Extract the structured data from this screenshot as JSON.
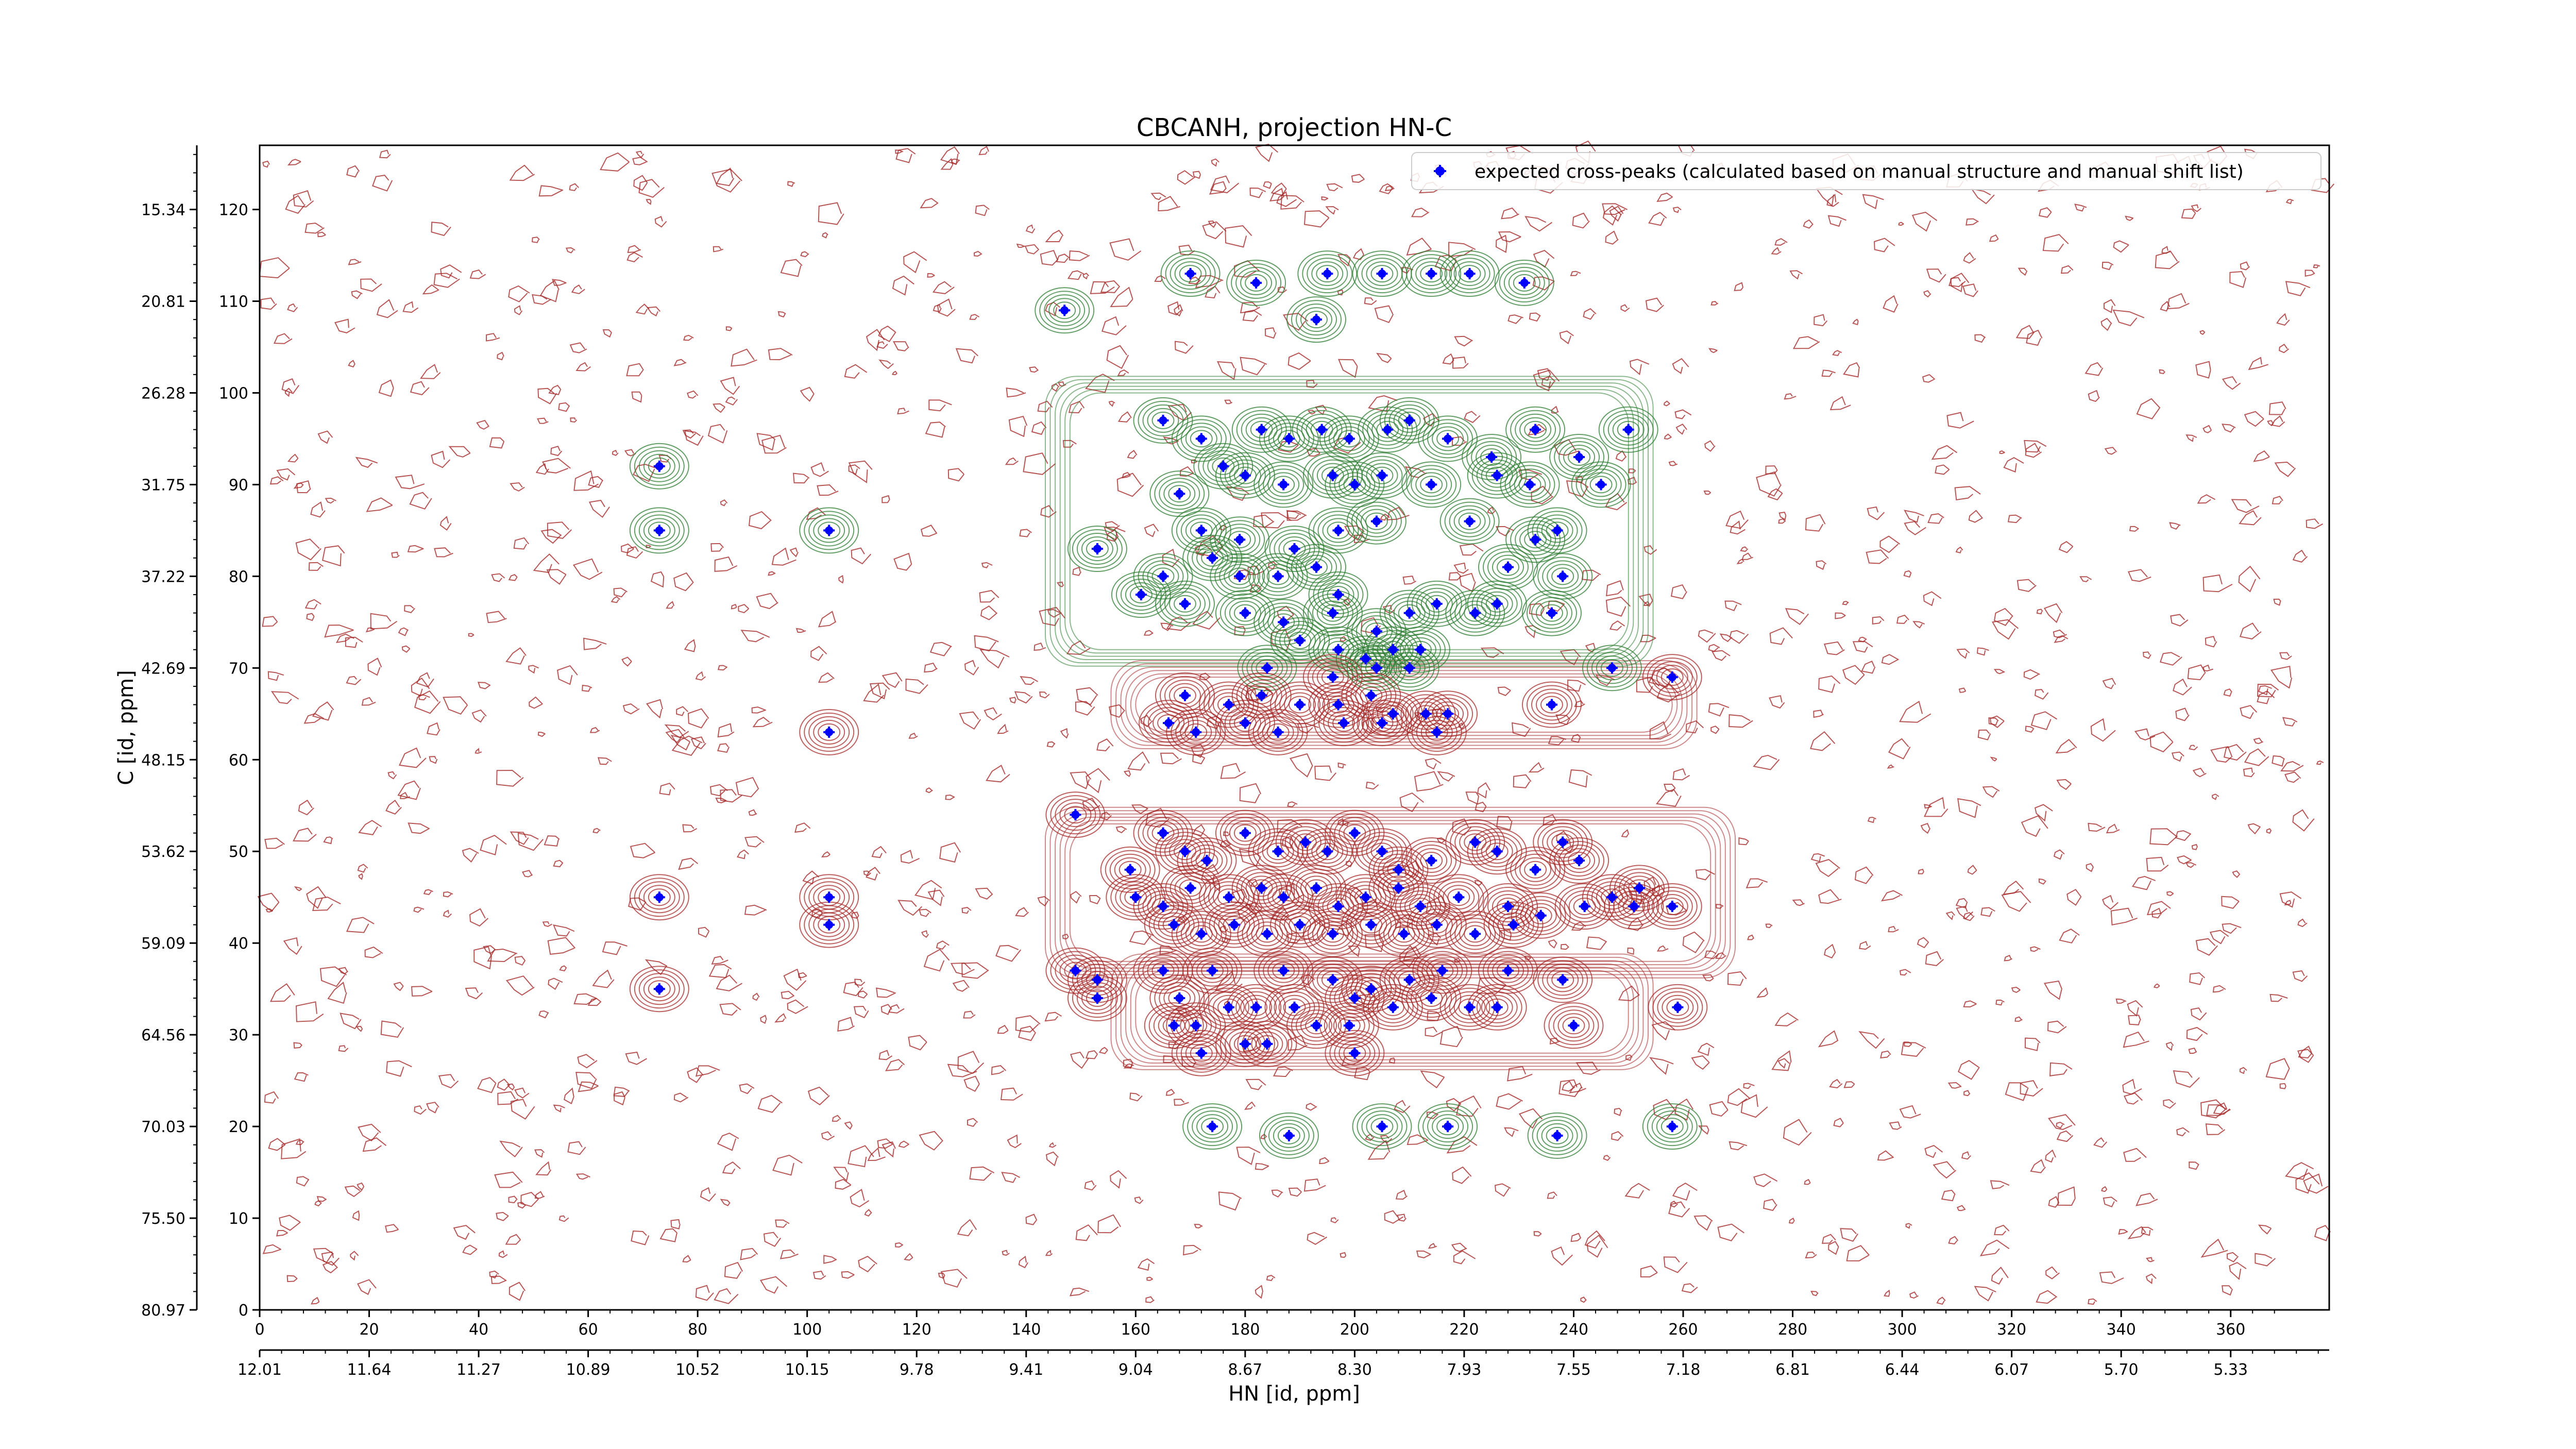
{
  "chart_data": {
    "type": "contour",
    "title": "CBCANH, projection HN-C",
    "xlabel": "HN [id, ppm]",
    "ylabel": "C [id, ppm]",
    "x_index_ticks": [
      "0",
      "20",
      "40",
      "60",
      "80",
      "100",
      "120",
      "140",
      "160",
      "180",
      "200",
      "220",
      "240",
      "260",
      "280",
      "300",
      "320",
      "340",
      "360"
    ],
    "x_ppm_ticks": [
      "12.01",
      "11.64",
      "11.27",
      "10.89",
      "10.52",
      "10.15",
      "9.78",
      "9.41",
      "9.04",
      "8.67",
      "8.30",
      "7.93",
      "7.55",
      "7.18",
      "6.81",
      "6.44",
      "6.07",
      "5.70",
      "5.33"
    ],
    "y_index_ticks": [
      "0",
      "10",
      "20",
      "30",
      "40",
      "50",
      "60",
      "70",
      "80",
      "90",
      "100",
      "110",
      "120"
    ],
    "y_ppm_ticks": [
      "80.97",
      "75.50",
      "70.03",
      "64.56",
      "59.09",
      "53.62",
      "48.15",
      "42.69",
      "37.22",
      "31.75",
      "26.28",
      "20.81",
      "15.34"
    ],
    "xlim": [
      0,
      378
    ],
    "ylim": [
      0,
      127
    ],
    "legend": {
      "label": "expected cross-peaks (calculated based on manual structure and manual shift list)",
      "placement": "top-right"
    },
    "colors": {
      "positive_contours": "#2e7d32",
      "negative_contours": "#a52a2a",
      "peaks": "#0000ff"
    },
    "expected_peaks": [
      [
        170,
        113
      ],
      [
        182,
        112
      ],
      [
        195,
        113
      ],
      [
        205,
        113
      ],
      [
        214,
        113
      ],
      [
        221,
        113
      ],
      [
        231,
        112
      ],
      [
        147,
        109
      ],
      [
        193,
        108
      ],
      [
        73,
        92
      ],
      [
        73,
        85
      ],
      [
        104,
        85
      ],
      [
        104,
        63
      ],
      [
        165,
        97
      ],
      [
        172,
        95
      ],
      [
        176,
        92
      ],
      [
        183,
        96
      ],
      [
        188,
        95
      ],
      [
        194,
        96
      ],
      [
        199,
        95
      ],
      [
        206,
        96
      ],
      [
        210,
        97
      ],
      [
        217,
        95
      ],
      [
        225,
        93
      ],
      [
        233,
        96
      ],
      [
        241,
        93
      ],
      [
        245,
        90
      ],
      [
        250,
        96
      ],
      [
        180,
        91
      ],
      [
        187,
        90
      ],
      [
        196,
        91
      ],
      [
        200,
        90
      ],
      [
        205,
        91
      ],
      [
        214,
        90
      ],
      [
        226,
        91
      ],
      [
        232,
        90
      ],
      [
        168,
        89
      ],
      [
        172,
        85
      ],
      [
        179,
        84
      ],
      [
        189,
        83
      ],
      [
        197,
        85
      ],
      [
        204,
        86
      ],
      [
        221,
        86
      ],
      [
        233,
        84
      ],
      [
        237,
        85
      ],
      [
        153,
        83
      ],
      [
        165,
        80
      ],
      [
        174,
        82
      ],
      [
        179,
        80
      ],
      [
        186,
        80
      ],
      [
        193,
        81
      ],
      [
        197,
        78
      ],
      [
        228,
        81
      ],
      [
        238,
        80
      ],
      [
        161,
        78
      ],
      [
        169,
        77
      ],
      [
        180,
        76
      ],
      [
        187,
        75
      ],
      [
        196,
        76
      ],
      [
        204,
        74
      ],
      [
        210,
        76
      ],
      [
        215,
        77
      ],
      [
        222,
        76
      ],
      [
        226,
        77
      ],
      [
        236,
        76
      ],
      [
        190,
        73
      ],
      [
        197,
        72
      ],
      [
        202,
        71
      ],
      [
        207,
        72
      ],
      [
        212,
        72
      ],
      [
        184,
        70
      ],
      [
        196,
        69
      ],
      [
        204,
        70
      ],
      [
        210,
        70
      ],
      [
        247,
        70
      ],
      [
        169,
        67
      ],
      [
        177,
        66
      ],
      [
        183,
        67
      ],
      [
        190,
        66
      ],
      [
        197,
        66
      ],
      [
        203,
        67
      ],
      [
        207,
        65
      ],
      [
        213,
        65
      ],
      [
        217,
        65
      ],
      [
        236,
        66
      ],
      [
        258,
        69
      ],
      [
        166,
        64
      ],
      [
        171,
        63
      ],
      [
        180,
        64
      ],
      [
        186,
        63
      ],
      [
        198,
        64
      ],
      [
        205,
        64
      ],
      [
        215,
        63
      ],
      [
        149,
        54
      ],
      [
        159,
        48
      ],
      [
        165,
        52
      ],
      [
        169,
        50
      ],
      [
        173,
        49
      ],
      [
        180,
        52
      ],
      [
        186,
        50
      ],
      [
        191,
        51
      ],
      [
        195,
        50
      ],
      [
        200,
        52
      ],
      [
        205,
        50
      ],
      [
        208,
        48
      ],
      [
        214,
        49
      ],
      [
        222,
        51
      ],
      [
        226,
        50
      ],
      [
        233,
        48
      ],
      [
        238,
        51
      ],
      [
        241,
        49
      ],
      [
        247,
        45
      ],
      [
        252,
        46
      ],
      [
        160,
        45
      ],
      [
        165,
        44
      ],
      [
        170,
        46
      ],
      [
        177,
        45
      ],
      [
        183,
        46
      ],
      [
        187,
        45
      ],
      [
        193,
        46
      ],
      [
        197,
        44
      ],
      [
        202,
        45
      ],
      [
        208,
        46
      ],
      [
        212,
        44
      ],
      [
        219,
        45
      ],
      [
        228,
        44
      ],
      [
        234,
        43
      ],
      [
        242,
        44
      ],
      [
        251,
        44
      ],
      [
        258,
        44
      ],
      [
        167,
        42
      ],
      [
        172,
        41
      ],
      [
        178,
        42
      ],
      [
        184,
        41
      ],
      [
        190,
        42
      ],
      [
        196,
        41
      ],
      [
        203,
        42
      ],
      [
        209,
        41
      ],
      [
        215,
        42
      ],
      [
        222,
        41
      ],
      [
        229,
        42
      ],
      [
        73,
        45
      ],
      [
        104,
        45
      ],
      [
        104,
        42
      ],
      [
        73,
        35
      ],
      [
        149,
        37
      ],
      [
        153,
        36
      ],
      [
        153,
        34
      ],
      [
        165,
        37
      ],
      [
        174,
        37
      ],
      [
        187,
        37
      ],
      [
        196,
        36
      ],
      [
        203,
        35
      ],
      [
        210,
        36
      ],
      [
        216,
        37
      ],
      [
        228,
        37
      ],
      [
        168,
        34
      ],
      [
        177,
        33
      ],
      [
        182,
        33
      ],
      [
        189,
        33
      ],
      [
        200,
        34
      ],
      [
        207,
        33
      ],
      [
        214,
        34
      ],
      [
        221,
        33
      ],
      [
        226,
        33
      ],
      [
        238,
        36
      ],
      [
        259,
        33
      ],
      [
        167,
        31
      ],
      [
        171,
        31
      ],
      [
        180,
        29
      ],
      [
        184,
        29
      ],
      [
        193,
        31
      ],
      [
        199,
        31
      ],
      [
        240,
        31
      ],
      [
        172,
        28
      ],
      [
        200,
        28
      ],
      [
        174,
        20
      ],
      [
        188,
        19
      ],
      [
        205,
        20
      ],
      [
        217,
        20
      ],
      [
        237,
        19
      ],
      [
        258,
        20
      ]
    ]
  }
}
